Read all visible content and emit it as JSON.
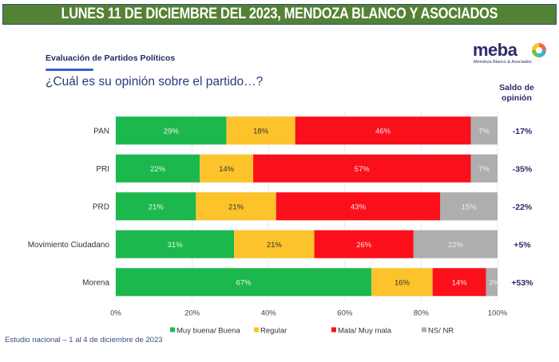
{
  "banner": {
    "title": "LUNES 11 DE DICIEMBRE DEL 2023, MENDOZA BLANCO Y ASOCIADOS"
  },
  "header": {
    "section_title": "Evaluación de Partidos Políticos",
    "question": "¿Cuál es su opinión sobre el partido…?",
    "saldo_heading_line1": "Saldo de",
    "saldo_heading_line2": "opinión"
  },
  "logo": {
    "name": "meba",
    "subtitle": "Mendoza Blanco & Asociados",
    "icon": "meba-logo-icon"
  },
  "footnote": "Estudio nacional – 1 al 4 de diciembre de 2023",
  "chart_data": {
    "type": "bar",
    "orientation": "horizontal",
    "stacked": true,
    "title": "¿Cuál es su opinión sobre el partido…?",
    "xlabel": "",
    "ylabel": "",
    "xlim": [
      0,
      100
    ],
    "x_ticks": [
      "0%",
      "20%",
      "40%",
      "60%",
      "80%",
      "100%"
    ],
    "grid": true,
    "legend_position": "bottom",
    "categories": [
      "PAN",
      "PRI",
      "PRD",
      "Movimiento Ciudadano",
      "Morena"
    ],
    "series": [
      {
        "name": "Muy buena/ Buena",
        "color": "#1cb84e",
        "label_color": "#e8f5e9",
        "values": [
          29,
          22,
          21,
          31,
          67
        ]
      },
      {
        "name": "Regular",
        "color": "#fcc42a",
        "label_color": "#333333",
        "values": [
          18,
          14,
          21,
          21,
          16
        ]
      },
      {
        "name": "Mala/ Muy mala",
        "color": "#fb0f1a",
        "label_color": "#fde2e2",
        "values": [
          46,
          57,
          43,
          26,
          14
        ]
      },
      {
        "name": "NS/ NR",
        "color": "#aeaeae",
        "label_color": "#eeeeee",
        "values": [
          7,
          7,
          15,
          22,
          3
        ]
      }
    ],
    "saldo_de_opinion": [
      "-17%",
      "-35%",
      "-22%",
      "+5%",
      "+53%"
    ]
  }
}
